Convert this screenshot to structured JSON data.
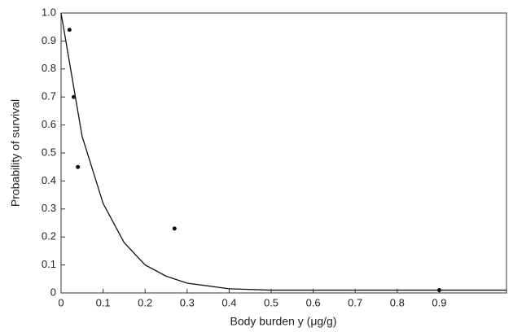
{
  "chart_data": {
    "type": "scatter",
    "x_label": "Body burden y (μg/g)",
    "y_label": "Probability of survival",
    "xlim": [
      0,
      1.06
    ],
    "ylim": [
      0,
      1
    ],
    "xticks": [
      0,
      0.1,
      0.2,
      0.3,
      0.4,
      0.5,
      0.6,
      0.7,
      0.8,
      0.9
    ],
    "yticks": [
      0,
      0.1,
      0.2,
      0.3,
      0.4,
      0.5,
      0.6,
      0.7,
      0.8,
      0.9,
      {
        "value": 1,
        "label": "1.0"
      }
    ],
    "series": [
      {
        "type": "scatter",
        "color": "#111",
        "x": [
          0.02,
          0.03,
          0.04,
          0.27,
          0.9
        ],
        "values": [
          0.94,
          0.7,
          0.45,
          0.23,
          0.01
        ]
      },
      {
        "type": "line",
        "color": "#111",
        "x": [
          0,
          0.05,
          0.1,
          0.15,
          0.2,
          0.25,
          0.3,
          0.4,
          0.5,
          0.6,
          0.7,
          0.8,
          0.9,
          1.0,
          1.06
        ],
        "values": [
          1,
          0.56,
          0.32,
          0.18,
          0.1,
          0.06,
          0.035,
          0.015,
          0.01,
          0.01,
          0.01,
          0.01,
          0.01,
          0.01,
          0.01
        ]
      }
    ]
  }
}
